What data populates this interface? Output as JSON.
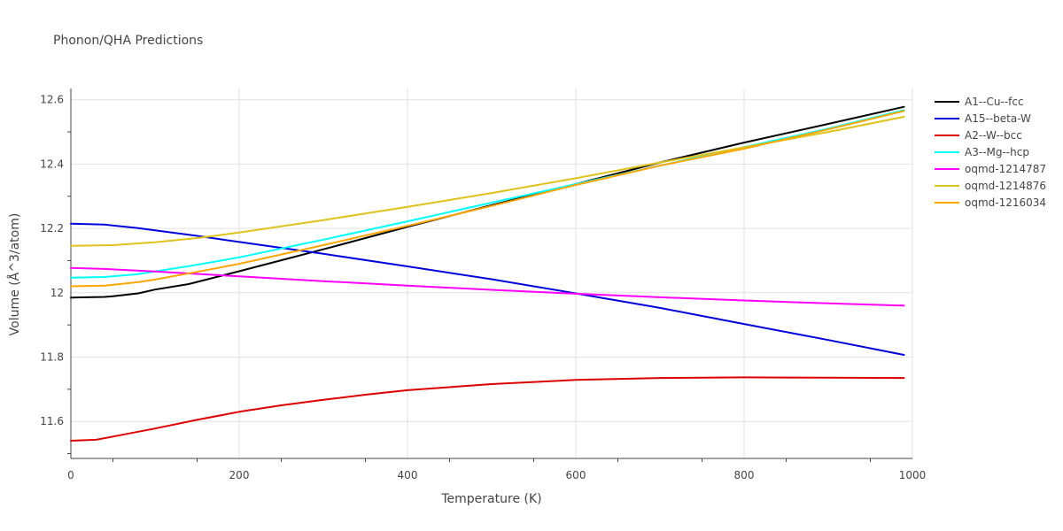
{
  "chart_data": {
    "type": "line",
    "title": "Phonon/QHA Predictions",
    "xlabel": "Temperature (K)",
    "ylabel": "Volume (Å^3/atom)",
    "xlim": [
      0,
      1000
    ],
    "ylim": [
      11.485,
      12.635
    ],
    "xticks": [
      0,
      200,
      400,
      600,
      800,
      1000
    ],
    "yticks": [
      11.6,
      11.8,
      12.0,
      12.2,
      12.4,
      12.6
    ],
    "ytick_labels": [
      "11.6",
      "11.8",
      "12",
      "12.2",
      "12.4",
      "12.6"
    ],
    "grid": true,
    "legend_position": "top-right",
    "series": [
      {
        "name": "A1--Cu--fcc",
        "color": "#000000",
        "x": [
          0,
          40,
          50,
          80,
          100,
          140,
          200,
          260,
          300,
          350,
          400,
          500,
          600,
          700,
          800,
          900,
          990
        ],
        "y": [
          11.985,
          11.987,
          11.989,
          11.998,
          12.01,
          12.027,
          12.067,
          12.108,
          12.135,
          12.17,
          12.205,
          12.272,
          12.338,
          12.405,
          12.467,
          12.525,
          12.578
        ]
      },
      {
        "name": "A15--beta-W",
        "color": "#0000dd",
        "x": [
          0,
          40,
          80,
          100,
          150,
          200,
          300,
          400,
          500,
          600,
          700,
          800,
          900,
          990
        ],
        "y": [
          12.215,
          12.212,
          12.201,
          12.194,
          12.177,
          12.158,
          12.121,
          12.082,
          12.042,
          11.998,
          11.953,
          11.903,
          11.853,
          11.807
        ]
      },
      {
        "name": "A2--W--bcc",
        "color": "#dd0000",
        "x": [
          0,
          30,
          50,
          80,
          100,
          150,
          200,
          250,
          300,
          350,
          400,
          500,
          600,
          700,
          800,
          900,
          990
        ],
        "y": [
          11.54,
          11.543,
          11.553,
          11.568,
          11.578,
          11.605,
          11.63,
          11.65,
          11.667,
          11.683,
          11.697,
          11.716,
          11.729,
          11.735,
          11.737,
          11.736,
          11.735
        ]
      },
      {
        "name": "A3--Mg--hcp",
        "color": "#00ffff",
        "x": [
          0,
          40,
          80,
          100,
          150,
          200,
          300,
          400,
          500,
          600,
          700,
          800,
          900,
          990
        ],
        "y": [
          12.047,
          12.049,
          12.058,
          12.066,
          12.087,
          12.11,
          12.165,
          12.222,
          12.28,
          12.338,
          12.395,
          12.453,
          12.51,
          12.568
        ]
      },
      {
        "name": "oqmd-1214787",
        "color": "#ff00ff",
        "x": [
          0,
          40,
          100,
          200,
          300,
          400,
          500,
          600,
          700,
          800,
          900,
          990
        ],
        "y": [
          12.077,
          12.074,
          12.066,
          12.051,
          12.036,
          12.022,
          12.009,
          11.997,
          11.986,
          11.976,
          11.967,
          11.96
        ]
      },
      {
        "name": "oqmd-1214876",
        "color": "#dfc21b",
        "x": [
          0,
          50,
          100,
          150,
          200,
          300,
          400,
          500,
          600,
          700,
          800,
          900,
          990
        ],
        "y": [
          12.146,
          12.148,
          12.157,
          12.17,
          12.187,
          12.226,
          12.267,
          12.31,
          12.356,
          12.405,
          12.452,
          12.5,
          12.547
        ]
      },
      {
        "name": "oqmd-1216034",
        "color": "#ffa500",
        "x": [
          0,
          40,
          80,
          100,
          150,
          200,
          300,
          400,
          500,
          600,
          700,
          800,
          900,
          990
        ],
        "y": [
          12.02,
          12.022,
          12.033,
          12.041,
          12.065,
          12.09,
          12.148,
          12.208,
          12.27,
          12.335,
          12.395,
          12.448,
          12.508,
          12.565
        ]
      }
    ]
  }
}
